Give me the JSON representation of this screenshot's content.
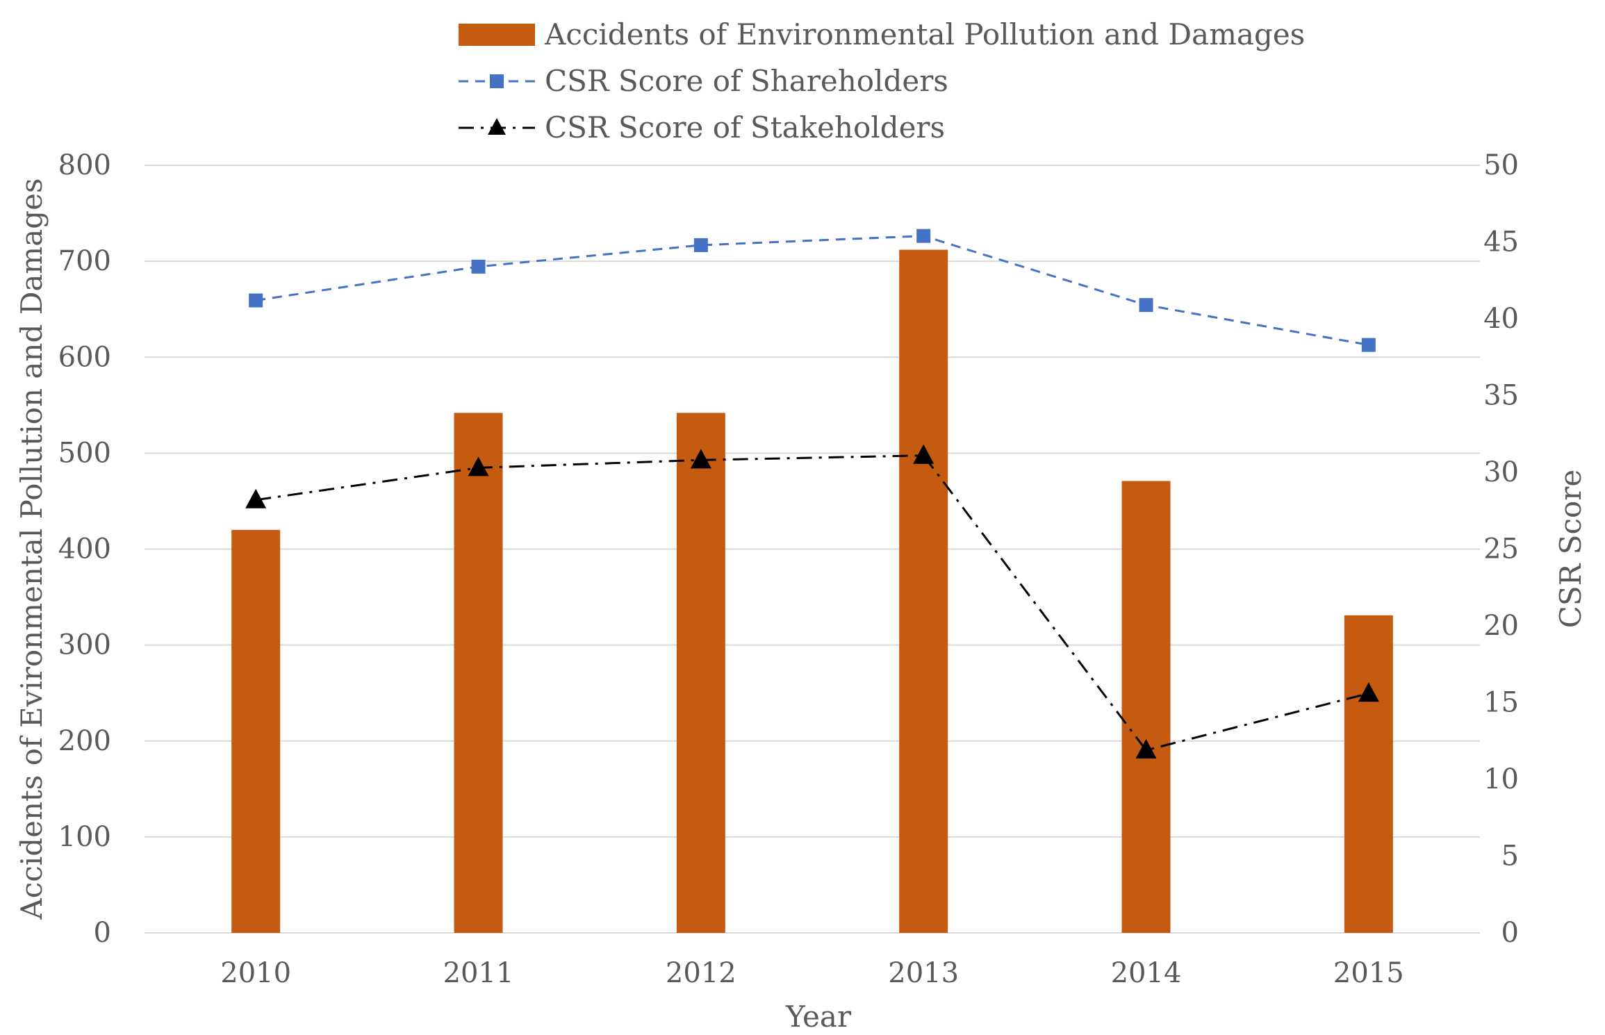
{
  "chart_data": {
    "type": "bar",
    "categories": [
      "2010",
      "2011",
      "2012",
      "2013",
      "2014",
      "2015"
    ],
    "xlabel": "Year",
    "ylabel": "Accidents of Evironmental Pollution and Damages",
    "y2label": "CSR Score",
    "ylim": [
      0,
      800
    ],
    "y2lim": [
      0,
      50
    ],
    "yticks": [
      "0",
      "100",
      "200",
      "300",
      "400",
      "500",
      "600",
      "700",
      "800"
    ],
    "y2ticks": [
      "0",
      "5",
      "10",
      "15",
      "20",
      "25",
      "30",
      "35",
      "40",
      "45",
      "50"
    ],
    "grid": true,
    "legend_position": "top",
    "series": [
      {
        "name": "Accidents of Environmental Pollution and Damages",
        "type": "bar",
        "axis": "left",
        "color": "#C55A11",
        "values": [
          420,
          542,
          542,
          712,
          471,
          331
        ]
      },
      {
        "name": "CSR Score of Shareholders",
        "type": "line",
        "axis": "right",
        "color": "#4472C4",
        "marker": "square",
        "line_style": "dashed",
        "values": [
          41.2,
          43.4,
          44.8,
          45.4,
          40.9,
          38.3
        ]
      },
      {
        "name": "CSR Score of Stakeholders",
        "type": "line",
        "axis": "right",
        "color": "#000000",
        "marker": "triangle",
        "line_style": "dash-dot",
        "values": [
          28.2,
          30.3,
          30.8,
          31.1,
          11.9,
          15.6
        ]
      }
    ]
  }
}
